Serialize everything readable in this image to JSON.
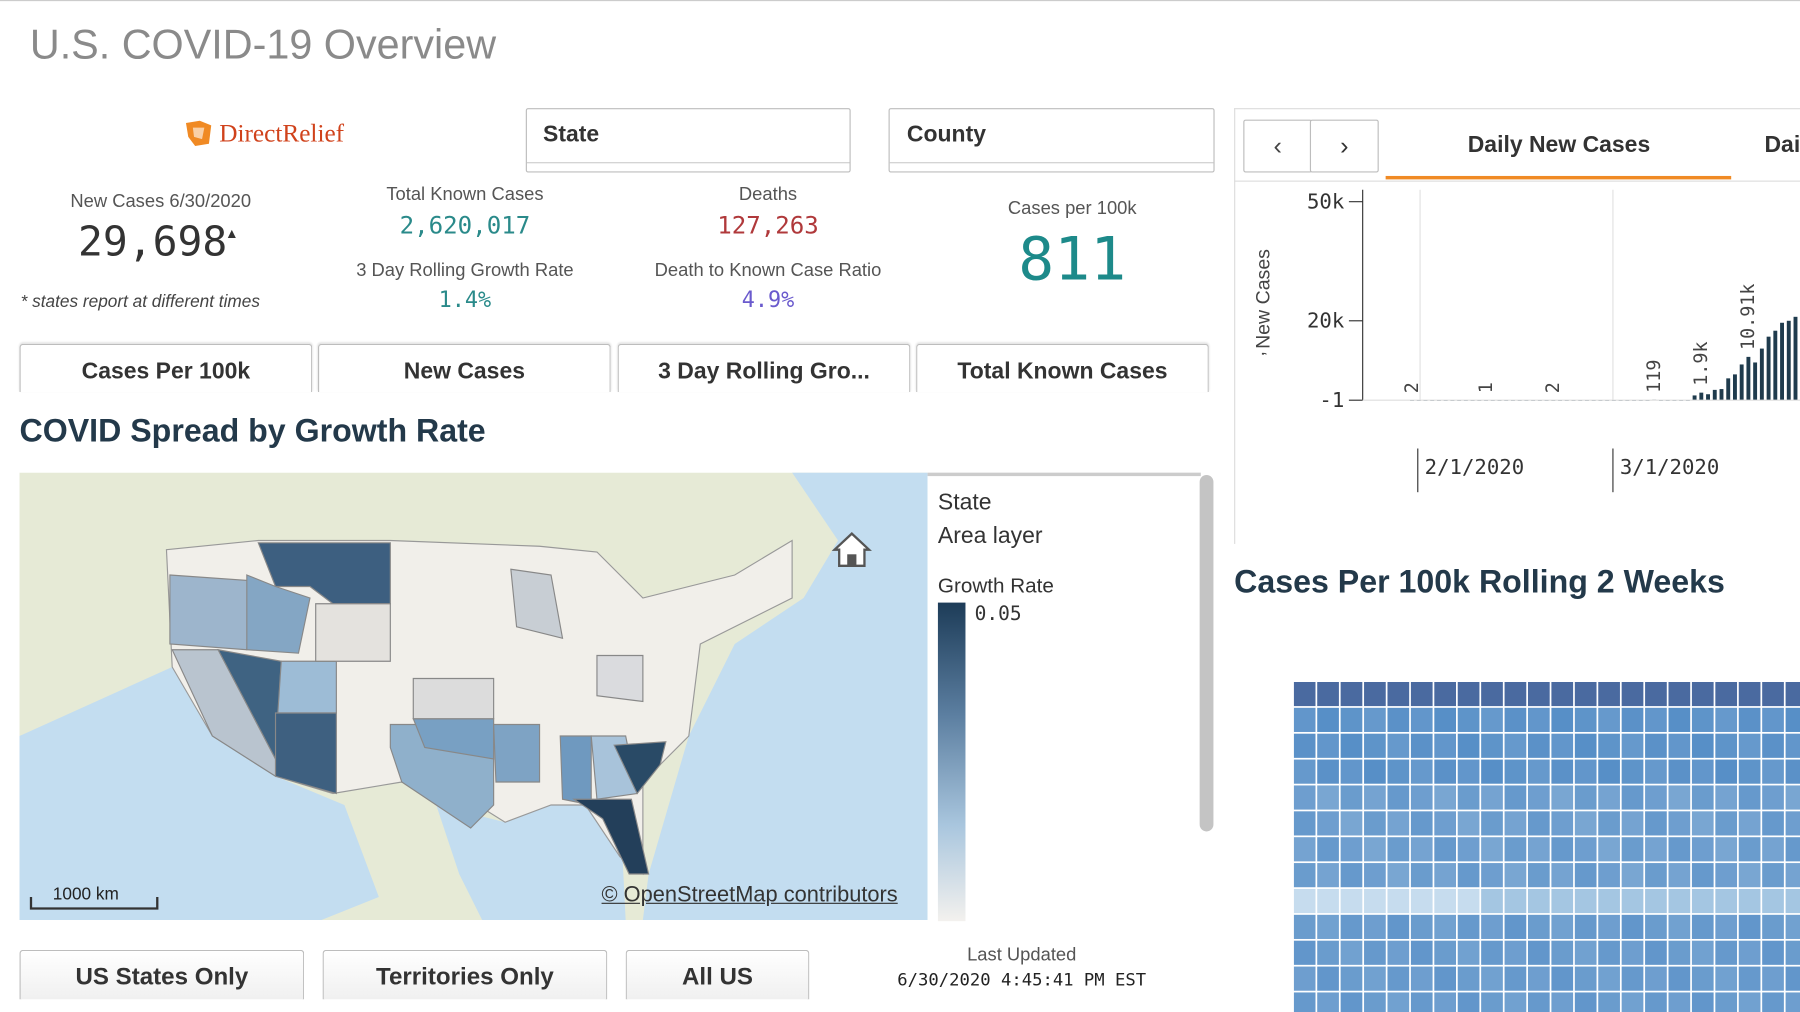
{
  "header": {
    "title": "U.S. COVID-19 Overview"
  },
  "logo": "DirectRelief",
  "filters": [
    "State",
    "County"
  ],
  "kpis": {
    "new_cases": {
      "label": "New Cases 6/30/2020",
      "value": "29,698",
      "note": "* states report at different times"
    },
    "total": {
      "label": "Total Known Cases",
      "value": "2,620,017"
    },
    "deaths": {
      "label": "Deaths",
      "value": "127,263"
    },
    "growth": {
      "label": "3 Day Rolling Growth Rate",
      "value": "1.4%"
    },
    "ratio": {
      "label": "Death to Known Case Ratio",
      "value": "4.9%"
    },
    "per100k": {
      "label": "Cases per 100k",
      "value": "811"
    }
  },
  "tabs": [
    "Cases Per 100k",
    "New Cases",
    "3 Day Rolling Gro...",
    "Total Known Cases"
  ],
  "map": {
    "title": "COVID Spread by Growth Rate",
    "scale": "1000 km",
    "attribution": "© OpenStreetMap contributors",
    "legend": {
      "layer": "State",
      "sublayer": "Area layer",
      "measure": "Growth Rate",
      "max": "0.05"
    }
  },
  "buttons": [
    "US States Only",
    "Territories Only",
    "All US"
  ],
  "updated": {
    "label": "Last Updated",
    "value": "6/30/2020 4:45:41 PM EST"
  },
  "right_tabs": [
    "Daily New Cases",
    "Dai"
  ],
  "daily_chart": {
    "type": "bar",
    "y_label": "New Cases",
    "ylim": [
      -1,
      53000
    ],
    "yticks": [
      {
        "value": 50000,
        "label": "50k"
      },
      {
        "value": 20000,
        "label": "20k"
      },
      -1
    ],
    "x_labels": [
      "2/1/2020",
      "3/1/2020"
    ],
    "values": [
      2,
      0,
      0,
      0,
      0,
      0,
      0,
      0,
      0,
      0,
      0,
      1,
      0,
      0,
      0,
      0,
      0,
      0,
      0,
      0,
      0,
      2,
      0,
      0,
      0,
      0,
      0,
      0,
      0,
      0,
      0,
      0,
      0,
      0,
      0,
      0,
      119,
      0,
      0,
      0,
      0,
      0,
      1200,
      1900,
      1500,
      2600,
      2800,
      5500,
      6500,
      9000,
      10910,
      9500,
      13000,
      16000,
      17500,
      19500,
      20000,
      21000
    ],
    "value_labels": [
      "2",
      null,
      null,
      null,
      null,
      null,
      null,
      null,
      null,
      null,
      null,
      "1",
      null,
      null,
      null,
      null,
      null,
      null,
      null,
      null,
      null,
      "2",
      null,
      null,
      null,
      null,
      null,
      null,
      null,
      null,
      null,
      null,
      null,
      null,
      null,
      null,
      "119",
      null,
      null,
      null,
      null,
      null,
      null,
      "1.9k",
      null,
      null,
      null,
      null,
      null,
      null,
      "10.91k",
      null,
      null,
      null,
      null,
      null,
      null,
      null
    ],
    "color": "#1f3b4d"
  },
  "heatmap": {
    "title": "Cases Per 100k Rolling 2 Weeks"
  }
}
